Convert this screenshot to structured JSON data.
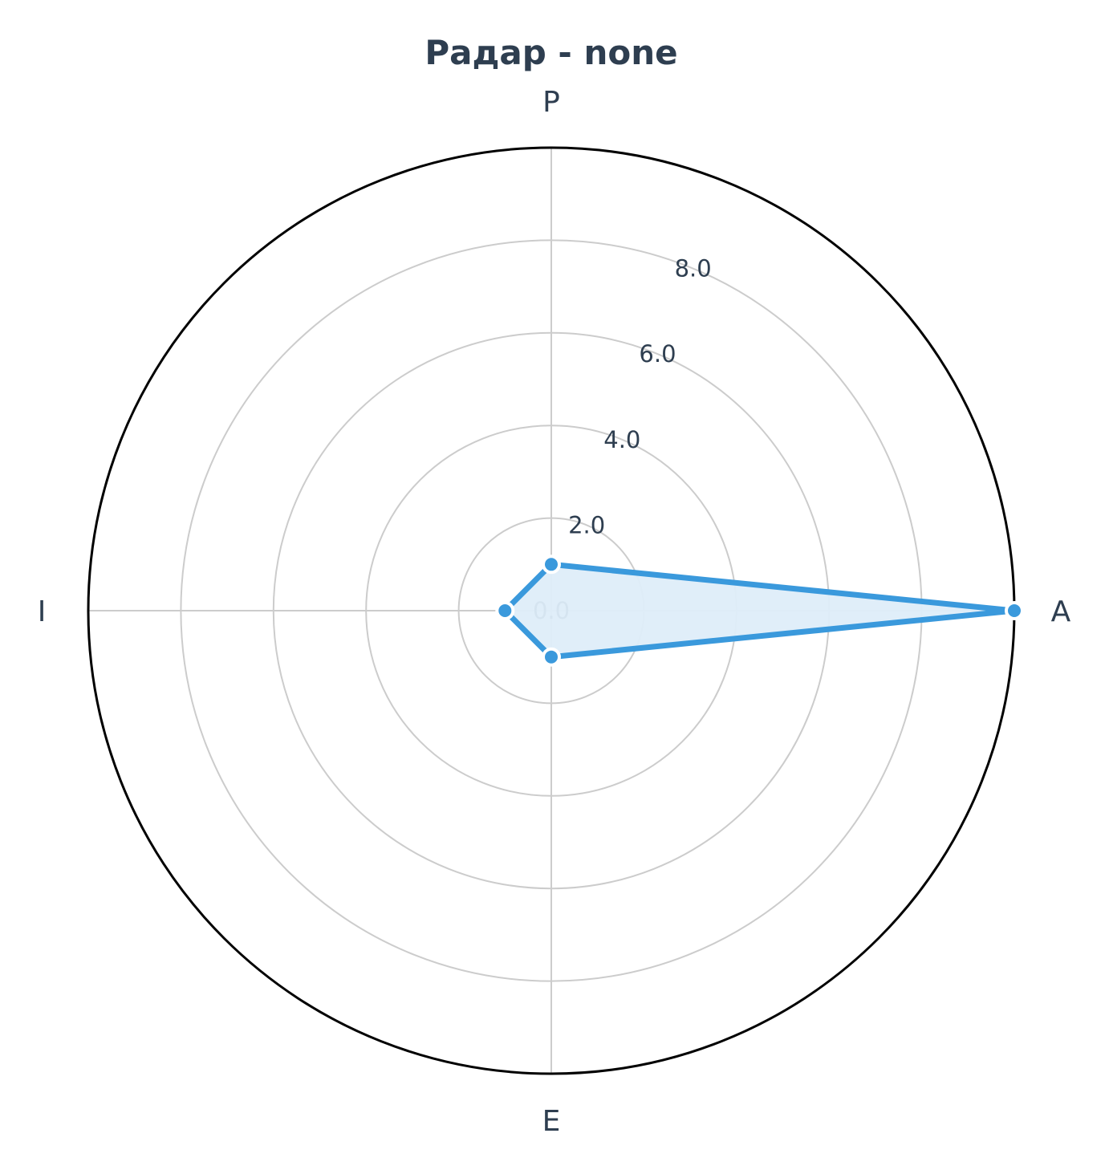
{
  "chart_data": {
    "type": "radar",
    "title": "Радар - none",
    "axes": [
      "A",
      "P",
      "I",
      "E"
    ],
    "series": [
      {
        "values": [
          10.0,
          1.0,
          1.0,
          1.0
        ]
      }
    ],
    "rlim": [
      0,
      10
    ],
    "rticks": [
      0,
      2,
      4,
      6,
      8,
      10
    ],
    "rtick_labels": [
      "0.0",
      "2.0",
      "4.0",
      "6.0",
      "8.0"
    ],
    "grid": true,
    "colors": {
      "line": "#3a99dc",
      "fill": "#deedf9",
      "grid": "#cccccc",
      "outline": "#000000",
      "text": "#2e3e50"
    }
  }
}
